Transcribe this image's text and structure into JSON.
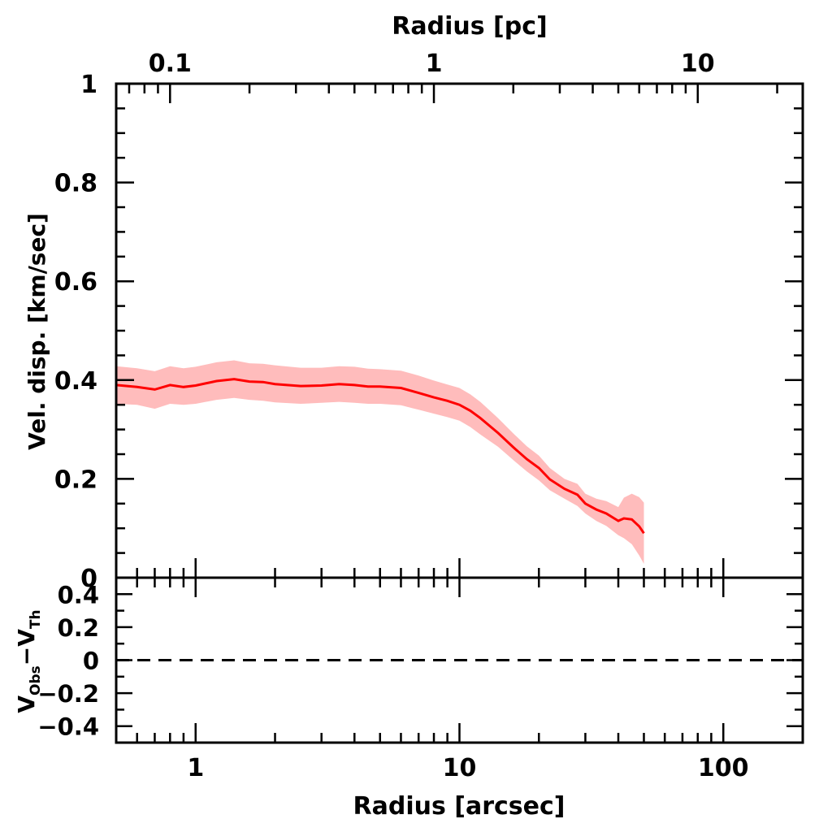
{
  "chart_data": {
    "type": "line",
    "panels": [
      {
        "name": "main",
        "xlabel_top": "Radius [pc]",
        "xscale": "log",
        "xlim_arcsec": [
          0.5,
          200
        ],
        "xlim_pc": [
          0.0625,
          25
        ],
        "top_tick_labels": [
          {
            "value": 0.1,
            "label": "0.1"
          },
          {
            "value": 1,
            "label": "1"
          },
          {
            "value": 10,
            "label": "10"
          }
        ],
        "ylabel": "Vel. disp. [km/sec]",
        "ylim": [
          0,
          1
        ],
        "y_tick_labels": [
          {
            "value": 1,
            "label": "1"
          },
          {
            "value": 0.8,
            "label": "0.8"
          },
          {
            "value": 0.6,
            "label": "0.6"
          },
          {
            "value": 0.4,
            "label": "0.4"
          },
          {
            "value": 0.2,
            "label": "0.2"
          },
          {
            "value": 0,
            "label": "0"
          }
        ],
        "series": [
          {
            "name": "velocity dispersion",
            "color": "#ff0000",
            "band_color": "#ffbcbc",
            "x": [
              0.5,
              0.6,
              0.7,
              0.8,
              0.9,
              1.0,
              1.2,
              1.4,
              1.6,
              1.8,
              2.0,
              2.5,
              3.0,
              3.5,
              4.0,
              4.5,
              5.0,
              6.0,
              7.0,
              8.0,
              9.0,
              10.0,
              11.0,
              12.0,
              14.0,
              16.0,
              18.0,
              20.0,
              22.0,
              25.0,
              28.0,
              30.0,
              33.0,
              36.0,
              40.0,
              42.0,
              45.0,
              48.0,
              50.0
            ],
            "y": [
              0.39,
              0.386,
              0.381,
              0.39,
              0.386,
              0.389,
              0.398,
              0.402,
              0.397,
              0.396,
              0.392,
              0.388,
              0.389,
              0.392,
              0.39,
              0.387,
              0.387,
              0.384,
              0.374,
              0.365,
              0.358,
              0.35,
              0.338,
              0.323,
              0.293,
              0.264,
              0.24,
              0.222,
              0.199,
              0.18,
              0.168,
              0.15,
              0.138,
              0.13,
              0.115,
              0.12,
              0.118,
              0.104,
              0.09
            ],
            "y_lower": [
              0.352,
              0.35,
              0.342,
              0.352,
              0.35,
              0.352,
              0.36,
              0.364,
              0.36,
              0.358,
              0.355,
              0.352,
              0.354,
              0.356,
              0.354,
              0.352,
              0.352,
              0.349,
              0.34,
              0.332,
              0.325,
              0.318,
              0.305,
              0.29,
              0.265,
              0.238,
              0.215,
              0.197,
              0.177,
              0.16,
              0.145,
              0.13,
              0.115,
              0.105,
              0.086,
              0.08,
              0.068,
              0.045,
              0.028
            ],
            "y_upper": [
              0.428,
              0.424,
              0.418,
              0.428,
              0.424,
              0.427,
              0.436,
              0.44,
              0.434,
              0.433,
              0.43,
              0.425,
              0.425,
              0.428,
              0.427,
              0.423,
              0.422,
              0.419,
              0.409,
              0.399,
              0.391,
              0.384,
              0.371,
              0.356,
              0.323,
              0.292,
              0.266,
              0.247,
              0.222,
              0.2,
              0.19,
              0.17,
              0.16,
              0.155,
              0.143,
              0.162,
              0.17,
              0.163,
              0.152
            ]
          }
        ]
      },
      {
        "name": "residual",
        "ylabel_main": "V",
        "ylabel_sub1": "Obs",
        "ylabel_minus": "−V",
        "ylabel_sub2": "Th",
        "ylim": [
          -0.5,
          0.5
        ],
        "y_tick_labels": [
          {
            "value": 0.4,
            "label": "0.4"
          },
          {
            "value": 0.2,
            "label": "0.2"
          },
          {
            "value": 0,
            "label": "0"
          },
          {
            "value": -0.2,
            "label": "−0.2"
          },
          {
            "value": -0.4,
            "label": "−0.4"
          }
        ],
        "zero_line": {
          "value": 0,
          "style": "dashed"
        },
        "xlabel": "Radius [arcsec]",
        "bottom_tick_labels": [
          {
            "value": 1,
            "label": "1"
          },
          {
            "value": 10,
            "label": "10"
          },
          {
            "value": 100,
            "label": "100"
          }
        ]
      }
    ]
  }
}
